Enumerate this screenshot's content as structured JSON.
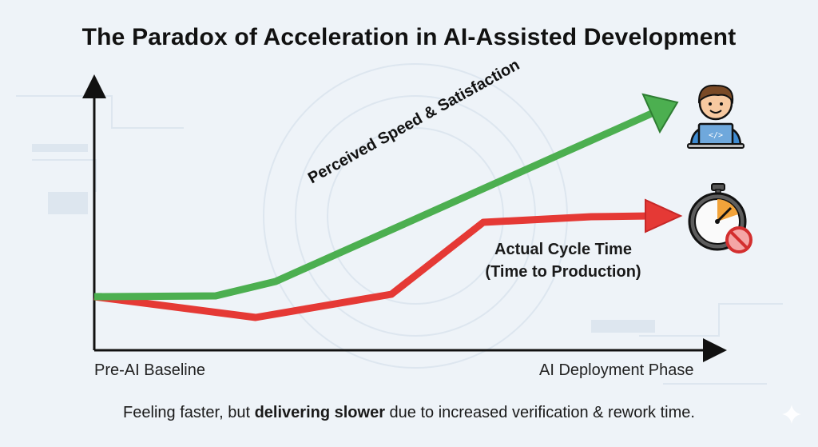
{
  "title": "The Paradox of Acceleration in AI-Assisted Development",
  "x_axis": {
    "start_label": "Pre-AI Baseline",
    "end_label": "AI Deployment Phase"
  },
  "series": {
    "perceived": {
      "label": "Perceived Speed & Satisfaction",
      "color": "#4caf50"
    },
    "actual": {
      "label_line1": "Actual Cycle Time",
      "label_line2": "(Time to Production)",
      "color": "#e53935"
    }
  },
  "caption": {
    "pre": "Feeling faster, but ",
    "bold": "delivering slower",
    "post": " due to increased verification & rework time."
  },
  "icons": {
    "developer": "developer-at-laptop-icon",
    "stopwatch": "stopwatch-with-no-sign-icon",
    "sparkle": "sparkle-icon"
  }
}
